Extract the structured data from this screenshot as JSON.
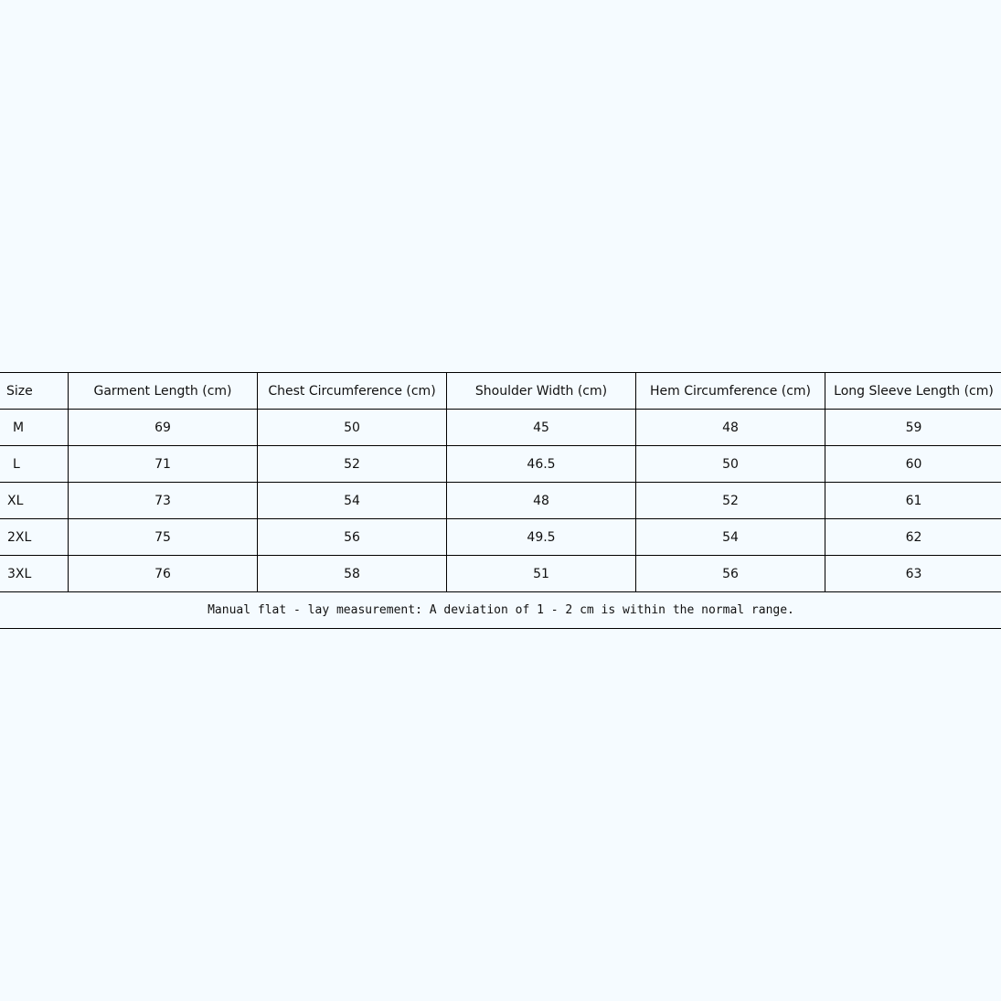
{
  "table": {
    "headers": [
      "Size",
      "Garment Length (cm)",
      "Chest Circumference (cm)",
      "Shoulder Width (cm)",
      "Hem Circumference (cm)",
      "Long Sleeve Length (cm)"
    ],
    "rows": [
      [
        "M",
        "69",
        "50",
        "45",
        "48",
        "59"
      ],
      [
        "L",
        "71",
        "52",
        "46.5",
        "50",
        "60"
      ],
      [
        "XL",
        "73",
        "54",
        "48",
        "52",
        "61"
      ],
      [
        "2XL",
        "75",
        "56",
        "49.5",
        "54",
        "62"
      ],
      [
        "3XL",
        "76",
        "58",
        "51",
        "56",
        "63"
      ]
    ],
    "note": "Manual flat - lay measurement: A deviation of 1 - 2 cm is within the normal range."
  }
}
